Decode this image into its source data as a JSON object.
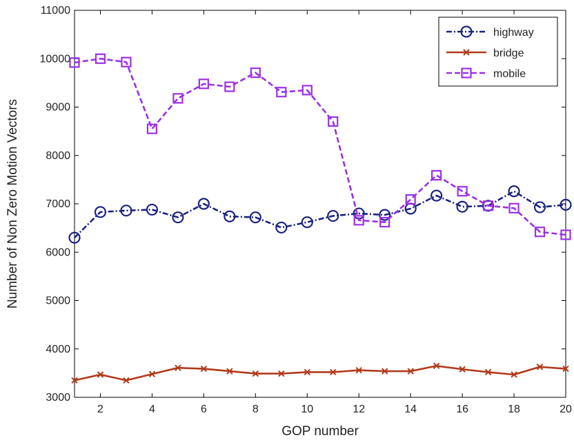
{
  "chart_data": {
    "type": "line",
    "xlabel": "GOP number",
    "ylabel": "Number of Non Zero Motion Vectors",
    "xlim": [
      1,
      20
    ],
    "ylim": [
      3000,
      11000
    ],
    "xticks": [
      2,
      4,
      6,
      8,
      10,
      12,
      14,
      16,
      18,
      20
    ],
    "yticks": [
      3000,
      4000,
      5000,
      6000,
      7000,
      8000,
      9000,
      10000,
      11000
    ],
    "grid": false,
    "legend_position": "top-right",
    "x": [
      1,
      2,
      3,
      4,
      5,
      6,
      7,
      8,
      9,
      10,
      11,
      12,
      13,
      14,
      15,
      16,
      17,
      18,
      19,
      20
    ],
    "series": [
      {
        "name": "highway",
        "color": "#1a237e",
        "marker": "circle",
        "linestyle": "dashdot",
        "values": [
          6300,
          6830,
          6860,
          6880,
          6720,
          7000,
          6740,
          6720,
          6510,
          6620,
          6750,
          6800,
          6770,
          6900,
          7170,
          6940,
          6960,
          7260,
          6930,
          6980
        ]
      },
      {
        "name": "bridge",
        "color": "#b03a1a",
        "marker": "x",
        "linestyle": "solid",
        "values": [
          3350,
          3470,
          3350,
          3480,
          3610,
          3590,
          3540,
          3490,
          3490,
          3520,
          3520,
          3560,
          3540,
          3540,
          3650,
          3580,
          3520,
          3470,
          3630,
          3590
        ]
      },
      {
        "name": "mobile",
        "color": "#9b30e6",
        "marker": "square",
        "linestyle": "dashed",
        "values": [
          9920,
          10000,
          9930,
          8550,
          9180,
          9480,
          9420,
          9710,
          9310,
          9350,
          8700,
          6660,
          6620,
          7090,
          7590,
          7260,
          6960,
          6910,
          6420,
          6360
        ]
      }
    ]
  }
}
